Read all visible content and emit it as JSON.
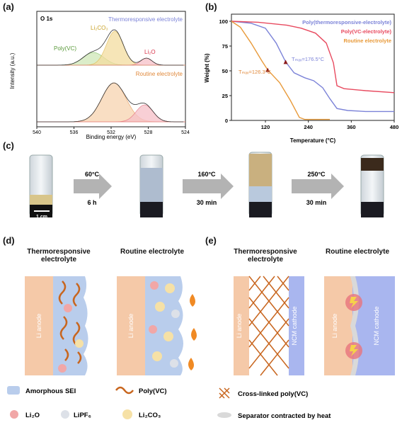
{
  "panel_a": {
    "label": "(a)",
    "tag": "O 1s",
    "top_label": "Thermoresponsive electrolyte",
    "bottom_label": "Routine electrolyte",
    "peak_li2co3": "Li₂CO₃",
    "peak_polyvc": "Poly(VC)",
    "peak_li2o": "Li₂O",
    "ylabel": "Intensity (a.u.)",
    "xlabel": "Binding energy (eV)",
    "ticks": [
      "540",
      "536",
      "532",
      "528",
      "524"
    ]
  },
  "panel_b": {
    "label": "(b)",
    "ylabel": "Weight (%)",
    "xlabel": "Temperature (°C)",
    "legend": [
      "Poly(thermoresponsive-electrolyte)",
      "Poly(VC-electrolyte)",
      "Routine electrolyte"
    ],
    "ann_thermo": "Tₘₐₓ=176.5°C",
    "ann_routine": "Tₘₐₓ=126.3°C"
  },
  "panel_c": {
    "label": "(c)",
    "scale": "1 cm",
    "steps": [
      {
        "temp": "60°C",
        "time": "6 h"
      },
      {
        "temp": "160°C",
        "time": "30 min"
      },
      {
        "temp": "250°C",
        "time": "30 min"
      }
    ]
  },
  "panel_d": {
    "label": "(d)",
    "title_left": "Thermoresponsive electrolyte",
    "title_right": "Routine electrolyte",
    "anode": "Li anode",
    "legend": {
      "sei": "Amorphous SEI",
      "polyvc": "Poly(VC)",
      "li2o": "Li₂O",
      "lipf6": "LiPF₆",
      "li2co3": "Li₂CO₃"
    }
  },
  "panel_e": {
    "label": "(e)",
    "title_left": "Thermoresponsive electrolyte",
    "title_right": "Routine electrolyte",
    "anode": "Li anode",
    "cathode": "NCM cathode",
    "legend_crosslinked": "Cross-linked poly(VC)",
    "legend_separator": "Separator contracted by heat"
  },
  "chart_data": [
    {
      "type": "line",
      "title": "",
      "xlabel": "Binding energy (eV)",
      "ylabel": "Intensity (a.u.)",
      "xlim": [
        540,
        524
      ],
      "x": [
        540,
        536,
        532,
        528,
        524
      ],
      "series": [
        {
          "name": "Thermoresponsive electrolyte",
          "peaks_eV": [
            533.9,
            531.6,
            528.2
          ]
        },
        {
          "name": "Routine electrolyte",
          "peaks_eV": [
            531.7,
            528.4
          ]
        }
      ]
    },
    {
      "type": "line",
      "xlabel": "Temperature (°C)",
      "ylabel": "Weight (%)",
      "xlim": [
        25,
        480
      ],
      "ylim": [
        0,
        100
      ],
      "x_ticks": [
        120,
        240,
        360,
        480
      ],
      "y_ticks": [
        0,
        25,
        50,
        75,
        100
      ],
      "series": [
        {
          "name": "Poly(thermoresponsive-electrolyte)",
          "x": [
            25,
            80,
            120,
            150,
            176.5,
            200,
            230,
            255,
            280,
            300,
            320,
            350,
            400,
            480
          ],
          "y": [
            100,
            98,
            93,
            78,
            59,
            48,
            43,
            40,
            33,
            22,
            12,
            10,
            9,
            9
          ]
        },
        {
          "name": "Poly(VC-electrolyte)",
          "x": [
            25,
            100,
            180,
            220,
            260,
            290,
            310,
            320,
            340,
            400,
            480
          ],
          "y": [
            100,
            99,
            96,
            93,
            88,
            78,
            58,
            35,
            32,
            30,
            28
          ]
        },
        {
          "name": "Routine electrolyte",
          "x": [
            25,
            50,
            80,
            110,
            126.3,
            160,
            190,
            215,
            230,
            260,
            300
          ],
          "y": [
            100,
            94,
            78,
            60,
            51,
            38,
            20,
            3,
            1,
            1,
            1
          ]
        }
      ]
    }
  ]
}
